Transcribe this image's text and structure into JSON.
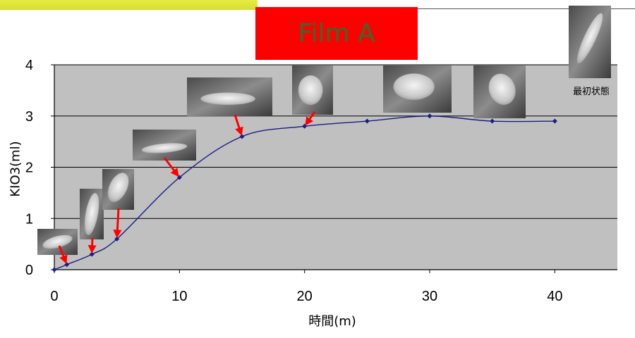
{
  "header": {
    "accent_color": "#d6de2e"
  },
  "title_box": {
    "background": "#ff0000",
    "text_color": "#2e6e2e"
  },
  "chart_data": {
    "type": "line",
    "title": "Film A",
    "xlabel": "時間(m)",
    "ylabel": "KIO3(ml)",
    "x": [
      0,
      1,
      3,
      5,
      10,
      15,
      20,
      25,
      30,
      35,
      40
    ],
    "series": [
      {
        "values": [
          0,
          0.1,
          0.3,
          0.6,
          1.8,
          2.6,
          2.8,
          2.9,
          3.0,
          2.9,
          2.9
        ],
        "color": "#1c1c84"
      }
    ],
    "xlim": [
      0,
      45
    ],
    "ylim": [
      0,
      4
    ],
    "xticks": [
      0,
      10,
      20,
      30,
      40
    ],
    "yticks": [
      0,
      1,
      2,
      3,
      4
    ],
    "grid": true,
    "plot_background": "#c0c0c0",
    "photo_arrows": {
      "color": "#ff0000",
      "target_x": [
        1,
        3,
        5,
        10,
        15,
        20
      ]
    },
    "annotations": [
      {
        "text": "最初状態"
      }
    ]
  }
}
